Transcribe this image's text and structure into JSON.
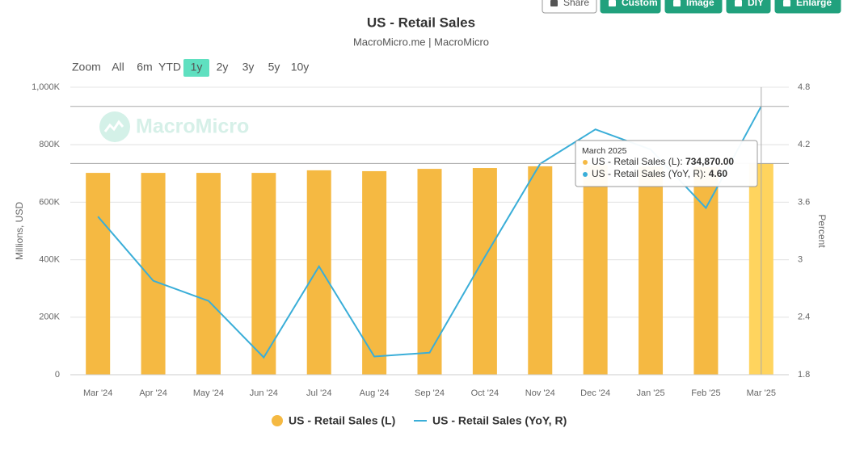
{
  "ui": {
    "buttons": [
      "Share",
      "Custom",
      "Image",
      "DIY",
      "Enlarge"
    ],
    "zoom_label": "Zoom",
    "zoom_options": [
      "All",
      "6m",
      "YTD",
      "1y",
      "2y",
      "3y",
      "5y",
      "10y"
    ],
    "zoom_selected": "1y",
    "watermark": "MacroMicro"
  },
  "chart_data": {
    "type": "bar-line",
    "title": "US - Retail Sales",
    "subtitle": "MacroMicro.me | MacroMicro",
    "categories": [
      "Mar '24",
      "Apr '24",
      "May '24",
      "Jun '24",
      "Jul '24",
      "Aug '24",
      "Sep '24",
      "Oct '24",
      "Nov '24",
      "Dec '24",
      "Jan '25",
      "Feb '25",
      "Mar '25"
    ],
    "series": [
      {
        "name": "US - Retail Sales (L)",
        "type": "bar",
        "color": "#f5b942",
        "highlight_color": "#ffd45e",
        "values": [
          702000,
          702000,
          702000,
          702000,
          711000,
          708000,
          716000,
          719000,
          725000,
          729000,
          724000,
          722000,
          734870
        ]
      },
      {
        "name": "US - Retail Sales (YoY, R)",
        "type": "line",
        "axis": "y2",
        "color": "#3aaed8",
        "values": [
          3.45,
          2.78,
          2.57,
          1.98,
          2.93,
          1.99,
          2.03,
          3.03,
          4.0,
          4.36,
          4.15,
          3.54,
          4.6
        ]
      }
    ],
    "ylabel": "Millions, USD",
    "y2label": "Percent",
    "ylim": [
      0,
      1000000
    ],
    "yticks": [
      0,
      {
        "value": 200000,
        "label": "200K"
      },
      {
        "value": 400000,
        "label": "400K"
      },
      {
        "value": 600000,
        "label": "600K"
      },
      {
        "value": 800000,
        "label": "800K"
      },
      {
        "value": 1000000,
        "label": "1,000K"
      }
    ],
    "y2lim": [
      1.8,
      4.8
    ],
    "y2ticks": [
      1.8,
      2.4,
      3,
      3.6,
      4.2,
      4.8
    ],
    "grid": true,
    "tooltip": {
      "title": "March 2025",
      "labels": [
        "US - Retail Sales (L): ",
        "US - Retail Sales (YoY, R): "
      ],
      "values": [
        {
          "value": 734870,
          "label": "734,870.00"
        },
        {
          "value": 4.6,
          "label": "4.60"
        }
      ]
    }
  }
}
